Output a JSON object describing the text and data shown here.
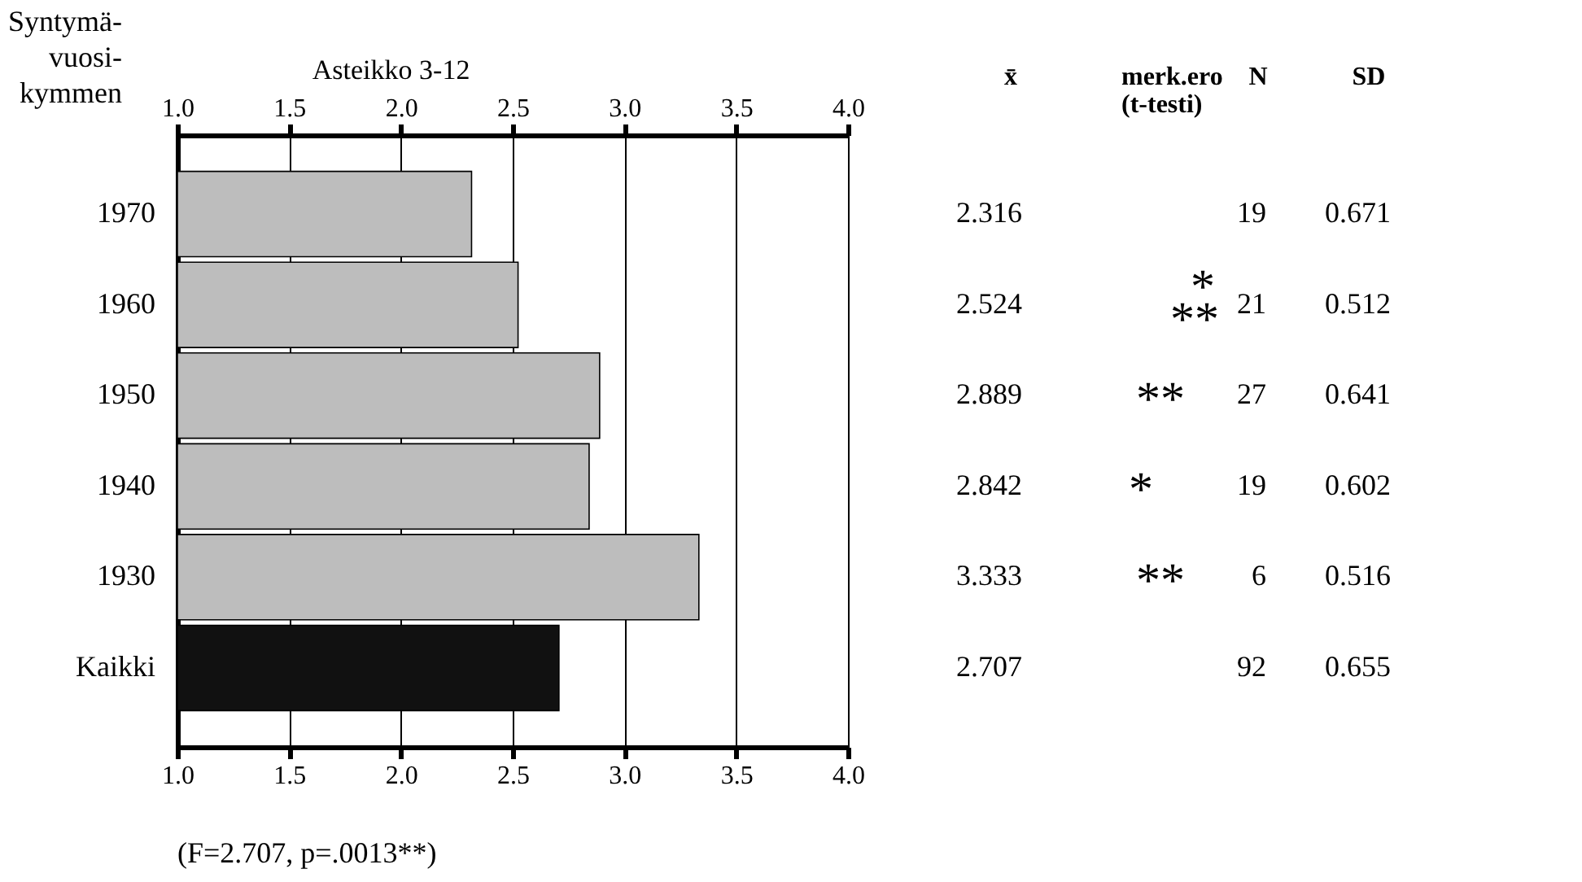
{
  "chart_data": {
    "type": "bar",
    "orientation": "horizontal",
    "ylabel": "Syntymä-vuosi-kymmen",
    "x2label": "Asteikko 3-12",
    "categories": [
      "1970",
      "1960",
      "1950",
      "1940",
      "1930",
      "Kaikki"
    ],
    "values": [
      2.316,
      2.524,
      2.889,
      2.842,
      3.333,
      2.707
    ],
    "colors": [
      "#bdbdbd",
      "#bdbdbd",
      "#bdbdbd",
      "#bdbdbd",
      "#bdbdbd",
      "#111111"
    ],
    "xlim": [
      1,
      4
    ],
    "xticks": [
      {
        "value": 1,
        "label": "1.0"
      },
      {
        "value": 1.5,
        "label": "1.5"
      },
      {
        "value": 2,
        "label": "2.0"
      },
      {
        "value": 2.5,
        "label": "2.5"
      },
      {
        "value": 3,
        "label": "3.0"
      },
      {
        "value": 3.5,
        "label": "3.5"
      },
      {
        "value": 4,
        "label": "4.0"
      }
    ],
    "x2lim": [
      1,
      4
    ],
    "x2ticks": [
      {
        "value": 1,
        "label": "1.0"
      },
      {
        "value": 1.5,
        "label": "1.5"
      },
      {
        "value": 2,
        "label": "2.0"
      },
      {
        "value": 2.5,
        "label": "2.5"
      },
      {
        "value": 3,
        "label": "3.0"
      },
      {
        "value": 3.5,
        "label": "3.5"
      },
      {
        "value": 4,
        "label": "4.0"
      }
    ],
    "grid": "x",
    "data_labels": true,
    "annotations": [
      "x̄",
      "merk.ero (t-testi)",
      "N",
      "SD",
      "19",
      "21",
      "27",
      "19",
      "6",
      "92",
      "0.671",
      "0.512",
      "0.641",
      "0.602",
      "0.516",
      "0.655",
      "*",
      "**",
      "**",
      "*",
      "**",
      "(F=2.707, p=.0013**)"
    ]
  }
}
